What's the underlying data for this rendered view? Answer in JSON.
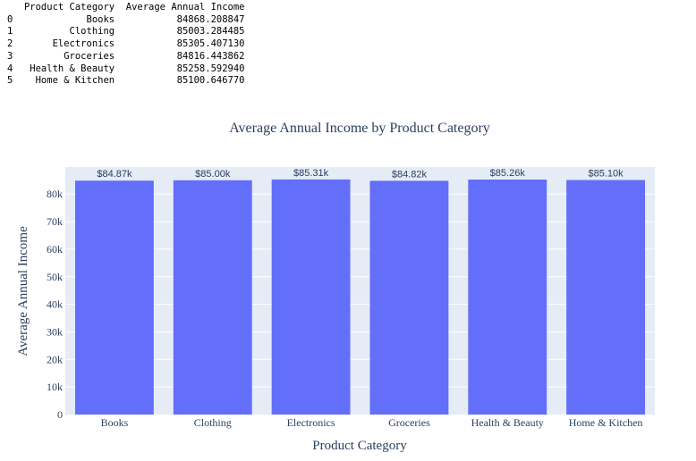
{
  "table": {
    "columns": [
      "",
      "Product Category",
      "Average Annual Income"
    ],
    "rows": [
      [
        "0",
        "Books",
        "84868.208847"
      ],
      [
        "1",
        "Clothing",
        "85003.284485"
      ],
      [
        "2",
        "Electronics",
        "85305.407130"
      ],
      [
        "3",
        "Groceries",
        "84816.443862"
      ],
      [
        "4",
        "Health & Beauty",
        "85258.592940"
      ],
      [
        "5",
        "Home & Kitchen",
        "85100.646770"
      ]
    ]
  },
  "chart_data": {
    "type": "bar",
    "title": "Average Annual Income by Product Category",
    "xlabel": "Product Category",
    "ylabel": "Average Annual Income",
    "categories": [
      "Books",
      "Clothing",
      "Electronics",
      "Groceries",
      "Health & Beauty",
      "Home & Kitchen"
    ],
    "values": [
      84868.208847,
      85003.284485,
      85305.40713,
      84816.443862,
      85258.59294,
      85100.64677
    ],
    "data_labels": [
      "$84.87k",
      "$85.00k",
      "$85.31k",
      "$84.82k",
      "$85.26k",
      "$85.10k"
    ],
    "yticks": [
      0,
      10000,
      20000,
      30000,
      40000,
      50000,
      60000,
      70000,
      80000
    ],
    "ytick_labels": [
      "0",
      "10k",
      "20k",
      "30k",
      "40k",
      "50k",
      "60k",
      "70k",
      "80k"
    ],
    "ylim": [
      0,
      89795.17
    ],
    "grid": true,
    "colors": {
      "bar": "#636efa",
      "plot_bg": "#e5ecf6",
      "text": "#2a3f5f",
      "grid": "#ffffff"
    }
  }
}
